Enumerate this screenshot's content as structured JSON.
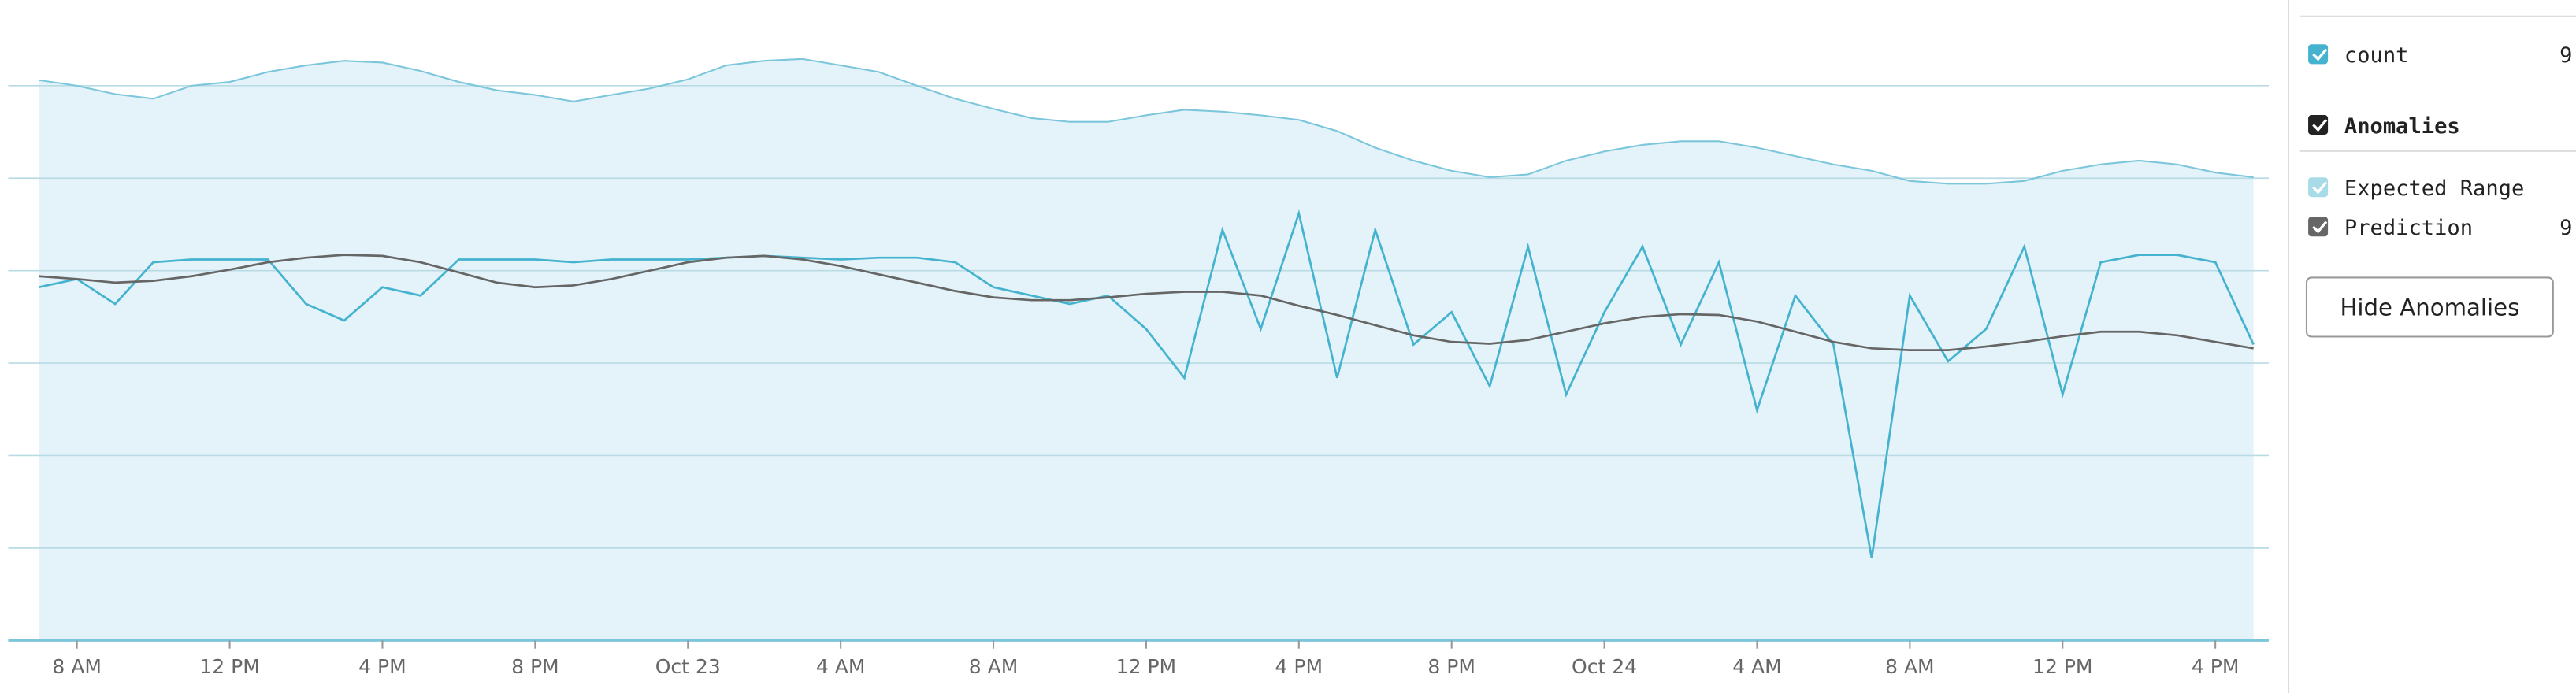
{
  "chart_data": {
    "type": "line",
    "x": [
      7,
      8,
      9,
      10,
      11,
      12,
      13,
      14,
      15,
      16,
      17,
      18,
      19,
      20,
      21,
      22,
      23,
      24,
      25,
      26,
      27,
      28,
      29,
      30,
      31,
      32,
      33,
      34,
      35,
      36,
      37,
      38,
      39,
      40,
      41,
      42,
      43,
      44,
      45,
      46,
      47,
      48,
      49,
      50,
      51,
      52,
      53,
      54,
      55,
      56,
      57,
      58,
      59,
      60,
      61,
      62,
      63,
      64,
      65
    ],
    "xlim": [
      6.2,
      65.4
    ],
    "xticks": [
      {
        "value": 8,
        "label": "8 AM"
      },
      {
        "value": 12,
        "label": "12 PM"
      },
      {
        "value": 16,
        "label": "4 PM"
      },
      {
        "value": 20,
        "label": "8 PM"
      },
      {
        "value": 24,
        "label": "Oct 23"
      },
      {
        "value": 28,
        "label": "4 AM"
      },
      {
        "value": 32,
        "label": "8 AM"
      },
      {
        "value": 36,
        "label": "12 PM"
      },
      {
        "value": 40,
        "label": "4 PM"
      },
      {
        "value": 44,
        "label": "8 PM"
      },
      {
        "value": 48,
        "label": "Oct 24"
      },
      {
        "value": 52,
        "label": "4 AM"
      },
      {
        "value": 56,
        "label": "8 AM"
      },
      {
        "value": 60,
        "label": "12 PM"
      },
      {
        "value": 64,
        "label": "4 PM"
      }
    ],
    "ylim": [
      0,
      7
    ],
    "yticks": [
      0,
      1,
      2,
      3,
      4,
      5,
      6
    ],
    "grid": true,
    "series": [
      {
        "name": "count",
        "color": "#45b3cf",
        "values": [
          3.82,
          3.91,
          3.64,
          4.09,
          4.12,
          4.12,
          4.12,
          3.64,
          3.46,
          3.82,
          3.73,
          4.12,
          4.12,
          4.12,
          4.09,
          4.12,
          4.12,
          4.12,
          4.14,
          4.16,
          4.14,
          4.12,
          4.14,
          4.14,
          4.09,
          3.82,
          3.73,
          3.64,
          3.73,
          3.37,
          2.84,
          4.44,
          3.37,
          4.62,
          2.84,
          4.44,
          3.2,
          3.55,
          2.75,
          4.26,
          2.66,
          3.55,
          4.26,
          3.2,
          4.09,
          2.49,
          3.73,
          3.2,
          0.89,
          3.73,
          3.02,
          3.37,
          4.26,
          2.66,
          4.09,
          4.17,
          4.17,
          4.09,
          3.2
        ]
      },
      {
        "name": "Expected Range",
        "color": "#7cc6dc",
        "area": true,
        "values": [
          6.06,
          6.0,
          5.91,
          5.86,
          6.0,
          6.04,
          6.15,
          6.22,
          6.27,
          6.25,
          6.16,
          6.04,
          5.95,
          5.9,
          5.83,
          5.9,
          5.97,
          6.07,
          6.22,
          6.27,
          6.29,
          6.22,
          6.15,
          6.0,
          5.86,
          5.75,
          5.65,
          5.61,
          5.61,
          5.68,
          5.74,
          5.72,
          5.68,
          5.63,
          5.51,
          5.33,
          5.19,
          5.08,
          5.01,
          5.04,
          5.19,
          5.29,
          5.36,
          5.4,
          5.4,
          5.33,
          5.24,
          5.15,
          5.08,
          4.97,
          4.94,
          4.94,
          4.97,
          5.08,
          5.15,
          5.19,
          5.15,
          5.06,
          5.01
        ]
      },
      {
        "name": "Prediction",
        "color": "#666666",
        "values": [
          3.94,
          3.91,
          3.87,
          3.89,
          3.94,
          4.01,
          4.09,
          4.14,
          4.17,
          4.16,
          4.09,
          3.98,
          3.87,
          3.82,
          3.84,
          3.91,
          4.0,
          4.09,
          4.14,
          4.16,
          4.12,
          4.05,
          3.96,
          3.87,
          3.78,
          3.71,
          3.68,
          3.68,
          3.71,
          3.75,
          3.77,
          3.77,
          3.73,
          3.62,
          3.52,
          3.41,
          3.3,
          3.23,
          3.21,
          3.25,
          3.34,
          3.43,
          3.5,
          3.53,
          3.52,
          3.45,
          3.34,
          3.23,
          3.16,
          3.14,
          3.14,
          3.18,
          3.23,
          3.29,
          3.34,
          3.34,
          3.3,
          3.23,
          3.16
        ]
      }
    ]
  },
  "sidebar": {
    "count_value": "9",
    "group": "Anomalies",
    "prediction_value": "9",
    "button": "Hide Anomalies"
  }
}
